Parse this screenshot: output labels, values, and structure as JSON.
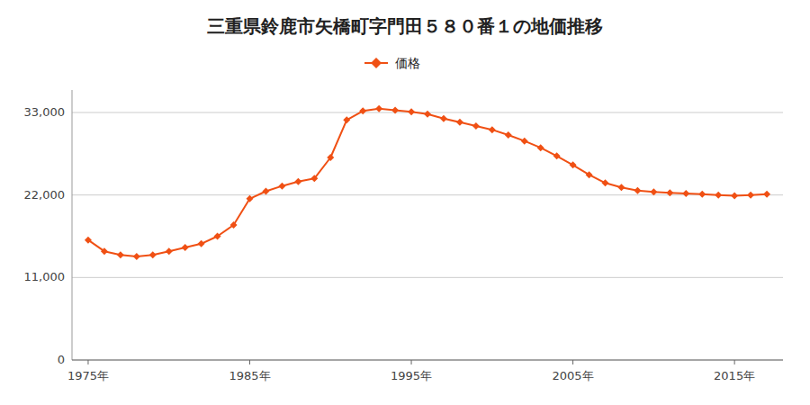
{
  "chart_data": {
    "type": "line",
    "title": "三重県鈴鹿市矢橋町字門田５８０番１の地価推移",
    "x": [
      1975,
      1976,
      1977,
      1978,
      1979,
      1980,
      1981,
      1982,
      1983,
      1984,
      1985,
      1986,
      1987,
      1988,
      1989,
      1990,
      1991,
      1992,
      1993,
      1994,
      1995,
      1996,
      1997,
      1998,
      1999,
      2000,
      2001,
      2002,
      2003,
      2004,
      2005,
      2006,
      2007,
      2008,
      2009,
      2010,
      2011,
      2012,
      2013,
      2014,
      2015,
      2016,
      2017
    ],
    "series": [
      {
        "name": "価格",
        "color": "#f05014",
        "marker": "diamond",
        "line_style": "solid",
        "values": [
          16000,
          14500,
          14000,
          13800,
          14000,
          14500,
          15000,
          15500,
          16500,
          18000,
          21500,
          22500,
          23200,
          23800,
          24200,
          27000,
          32000,
          33200,
          33500,
          33300,
          33100,
          32800,
          32200,
          31700,
          31200,
          30700,
          30000,
          29200,
          28300,
          27200,
          26000,
          24700,
          23600,
          23000,
          22600,
          22400,
          22300,
          22200,
          22100,
          22000,
          21900,
          22000,
          22100
        ]
      }
    ],
    "xlim": [
      1974,
      2018
    ],
    "xticks": [
      {
        "value": 1975,
        "label": "1975年"
      },
      {
        "value": 1985,
        "label": "1985年"
      },
      {
        "value": 1995,
        "label": "1995年"
      },
      {
        "value": 2005,
        "label": "2005年"
      },
      {
        "value": 2015,
        "label": "2015年"
      }
    ],
    "ylim": [
      0,
      36000
    ],
    "yticks": [
      0,
      {
        "value": 11000,
        "label": "11,000"
      },
      {
        "value": 22000,
        "label": "22,000"
      },
      {
        "value": 33000,
        "label": "33,000"
      }
    ],
    "grid": true,
    "legend": "top"
  }
}
